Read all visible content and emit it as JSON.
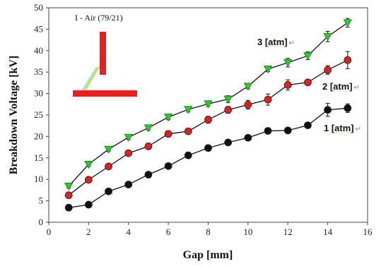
{
  "chart_data": {
    "type": "line",
    "xlabel": "Gap [mm]",
    "ylabel": "Breakdown Voltage [kV]",
    "xlim": [
      0,
      16
    ],
    "ylim": [
      0,
      50
    ],
    "xticks": [
      "0",
      "2",
      "4",
      "6",
      "8",
      "10",
      "12",
      "14",
      "16"
    ],
    "yticks": [
      "0",
      "5",
      "10",
      "15",
      "20",
      "25",
      "30",
      "35",
      "40",
      "45",
      "50"
    ],
    "grid": false,
    "inset": {
      "title": "I - Air (79/21)",
      "colors": {
        "electrode": "#ee1c1c",
        "discharge": "#f5d800",
        "glow": "#7de0f0"
      }
    },
    "series": [
      {
        "name": "3 [atm]",
        "marker": "triangle-down",
        "color": "#2ec82e",
        "x": [
          1,
          2,
          3,
          4,
          5,
          6,
          7,
          8,
          9,
          10,
          11,
          12,
          13,
          14,
          15
        ],
        "y": [
          8.4,
          13.5,
          17.0,
          19.8,
          22.0,
          24.5,
          26.3,
          27.6,
          28.7,
          31.7,
          35.7,
          37.2,
          38.8,
          43.3,
          46.5
        ],
        "err": [
          0.4,
          0.5,
          0.5,
          0.5,
          0.5,
          0.6,
          0.6,
          0.6,
          0.8,
          0.6,
          0.6,
          1.0,
          0.9,
          1.2,
          1.0
        ]
      },
      {
        "name": "2 [atm]",
        "marker": "circle",
        "color": "#e02020",
        "x": [
          1,
          2,
          3,
          4,
          5,
          6,
          7,
          8,
          9,
          10,
          11,
          12,
          13,
          14,
          15
        ],
        "y": [
          6.3,
          9.9,
          13.0,
          16.1,
          17.7,
          20.6,
          21.2,
          23.9,
          26.2,
          27.4,
          28.6,
          32.0,
          32.6,
          35.5,
          37.8
        ],
        "err": [
          0.4,
          0.5,
          0.6,
          0.6,
          0.7,
          0.7,
          0.6,
          0.8,
          0.8,
          1.0,
          1.3,
          1.2,
          0.6,
          1.0,
          2.0
        ]
      },
      {
        "name": "1 [atm]",
        "marker": "circle",
        "color": "#111111",
        "x": [
          1,
          2,
          3,
          4,
          5,
          6,
          7,
          8,
          9,
          10,
          11,
          12,
          13,
          14,
          15
        ],
        "y": [
          3.4,
          4.1,
          7.2,
          8.8,
          11.1,
          13.1,
          15.6,
          17.3,
          18.6,
          19.7,
          21.3,
          21.4,
          22.6,
          26.2,
          26.6
        ],
        "err": [
          0.3,
          0.3,
          0.4,
          0.4,
          0.4,
          0.5,
          0.5,
          0.4,
          0.5,
          0.5,
          0.5,
          0.5,
          0.5,
          1.5,
          1.0
        ]
      }
    ]
  }
}
